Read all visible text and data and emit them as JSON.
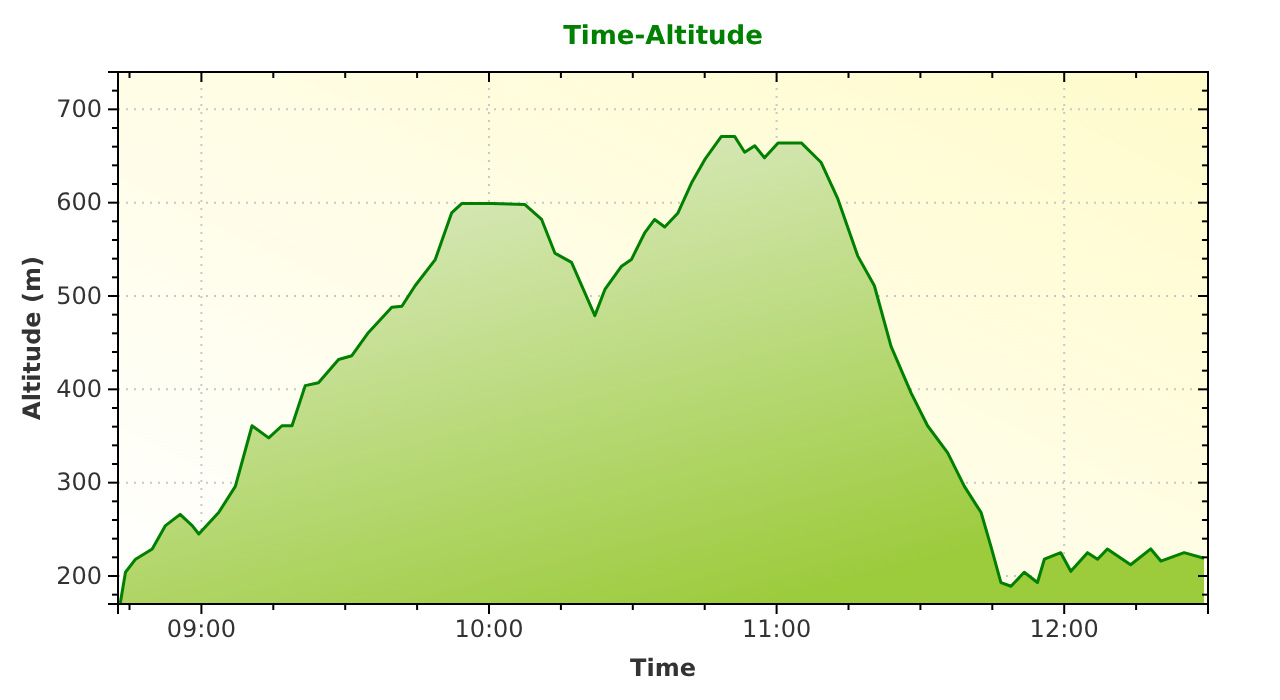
{
  "chart_data": {
    "type": "area",
    "title": "Time-Altitude",
    "xlabel": "Time",
    "ylabel": "Altitude (m)",
    "xlim": [
      8.71,
      12.5
    ],
    "ylim": [
      170,
      740
    ],
    "xticks": [
      {
        "value": 8.75,
        "label": null
      },
      {
        "value": 9,
        "label": "09:00"
      },
      {
        "value": 9.25,
        "label": null
      },
      {
        "value": 9.5,
        "label": null
      },
      {
        "value": 9.75,
        "label": null
      },
      {
        "value": 10,
        "label": "10:00"
      },
      {
        "value": 10.25,
        "label": null
      },
      {
        "value": 10.5,
        "label": null
      },
      {
        "value": 10.75,
        "label": null
      },
      {
        "value": 11,
        "label": "11:00"
      },
      {
        "value": 11.25,
        "label": null
      },
      {
        "value": 11.5,
        "label": null
      },
      {
        "value": 11.75,
        "label": null
      },
      {
        "value": 12,
        "label": "12:00"
      },
      {
        "value": 12.25,
        "label": null
      }
    ],
    "yticks": [
      {
        "value": 180,
        "label": null
      },
      200,
      {
        "value": 220,
        "label": null
      },
      {
        "value": 240,
        "label": null
      },
      {
        "value": 260,
        "label": null
      },
      {
        "value": 280,
        "label": null
      },
      300,
      {
        "value": 320,
        "label": null
      },
      {
        "value": 340,
        "label": null
      },
      {
        "value": 360,
        "label": null
      },
      {
        "value": 380,
        "label": null
      },
      400,
      {
        "value": 420,
        "label": null
      },
      {
        "value": 440,
        "label": null
      },
      {
        "value": 460,
        "label": null
      },
      {
        "value": 480,
        "label": null
      },
      500,
      {
        "value": 520,
        "label": null
      },
      {
        "value": 540,
        "label": null
      },
      {
        "value": 560,
        "label": null
      },
      {
        "value": 580,
        "label": null
      },
      600,
      {
        "value": 620,
        "label": null
      },
      {
        "value": 640,
        "label": null
      },
      {
        "value": 660,
        "label": null
      },
      {
        "value": 680,
        "label": null
      },
      700,
      {
        "value": 720,
        "label": null
      },
      {
        "value": 740,
        "label": null
      }
    ],
    "grid": true,
    "series": [
      {
        "color": "#008000",
        "x": [
          8.718,
          8.736,
          8.771,
          8.829,
          8.875,
          8.926,
          8.968,
          8.991,
          9.06,
          9.118,
          9.176,
          9.234,
          9.28,
          9.315,
          9.361,
          9.407,
          9.477,
          9.523,
          9.581,
          9.662,
          9.697,
          9.743,
          9.813,
          9.87,
          9.905,
          10.009,
          10.125,
          10.183,
          10.229,
          10.287,
          10.368,
          10.403,
          10.461,
          10.495,
          10.542,
          10.576,
          10.611,
          10.657,
          10.704,
          10.75,
          10.808,
          10.854,
          10.889,
          10.924,
          10.958,
          11.005,
          11.086,
          11.155,
          11.213,
          11.282,
          11.34,
          11.398,
          11.468,
          11.525,
          11.595,
          11.653,
          11.711,
          11.745,
          11.78,
          11.815,
          11.861,
          11.907,
          11.931,
          11.988,
          12.023,
          12.081,
          12.116,
          12.15,
          12.231,
          12.301,
          12.336,
          12.417,
          12.486
        ],
        "values": [
          171,
          204,
          218,
          229,
          254,
          266,
          254,
          245,
          268,
          296,
          361,
          348,
          361,
          361,
          404,
          407,
          432,
          436,
          461,
          488,
          489,
          511,
          539,
          589,
          599,
          599,
          598,
          582,
          546,
          536,
          479,
          507,
          532,
          539,
          568,
          582,
          574,
          589,
          621,
          646,
          671,
          671,
          654,
          661,
          648,
          664,
          664,
          643,
          604,
          543,
          511,
          446,
          396,
          361,
          332,
          296,
          268,
          232,
          193,
          189,
          204,
          193,
          218,
          225,
          205,
          225,
          218,
          229,
          212,
          229,
          216,
          225,
          219
        ]
      }
    ]
  }
}
